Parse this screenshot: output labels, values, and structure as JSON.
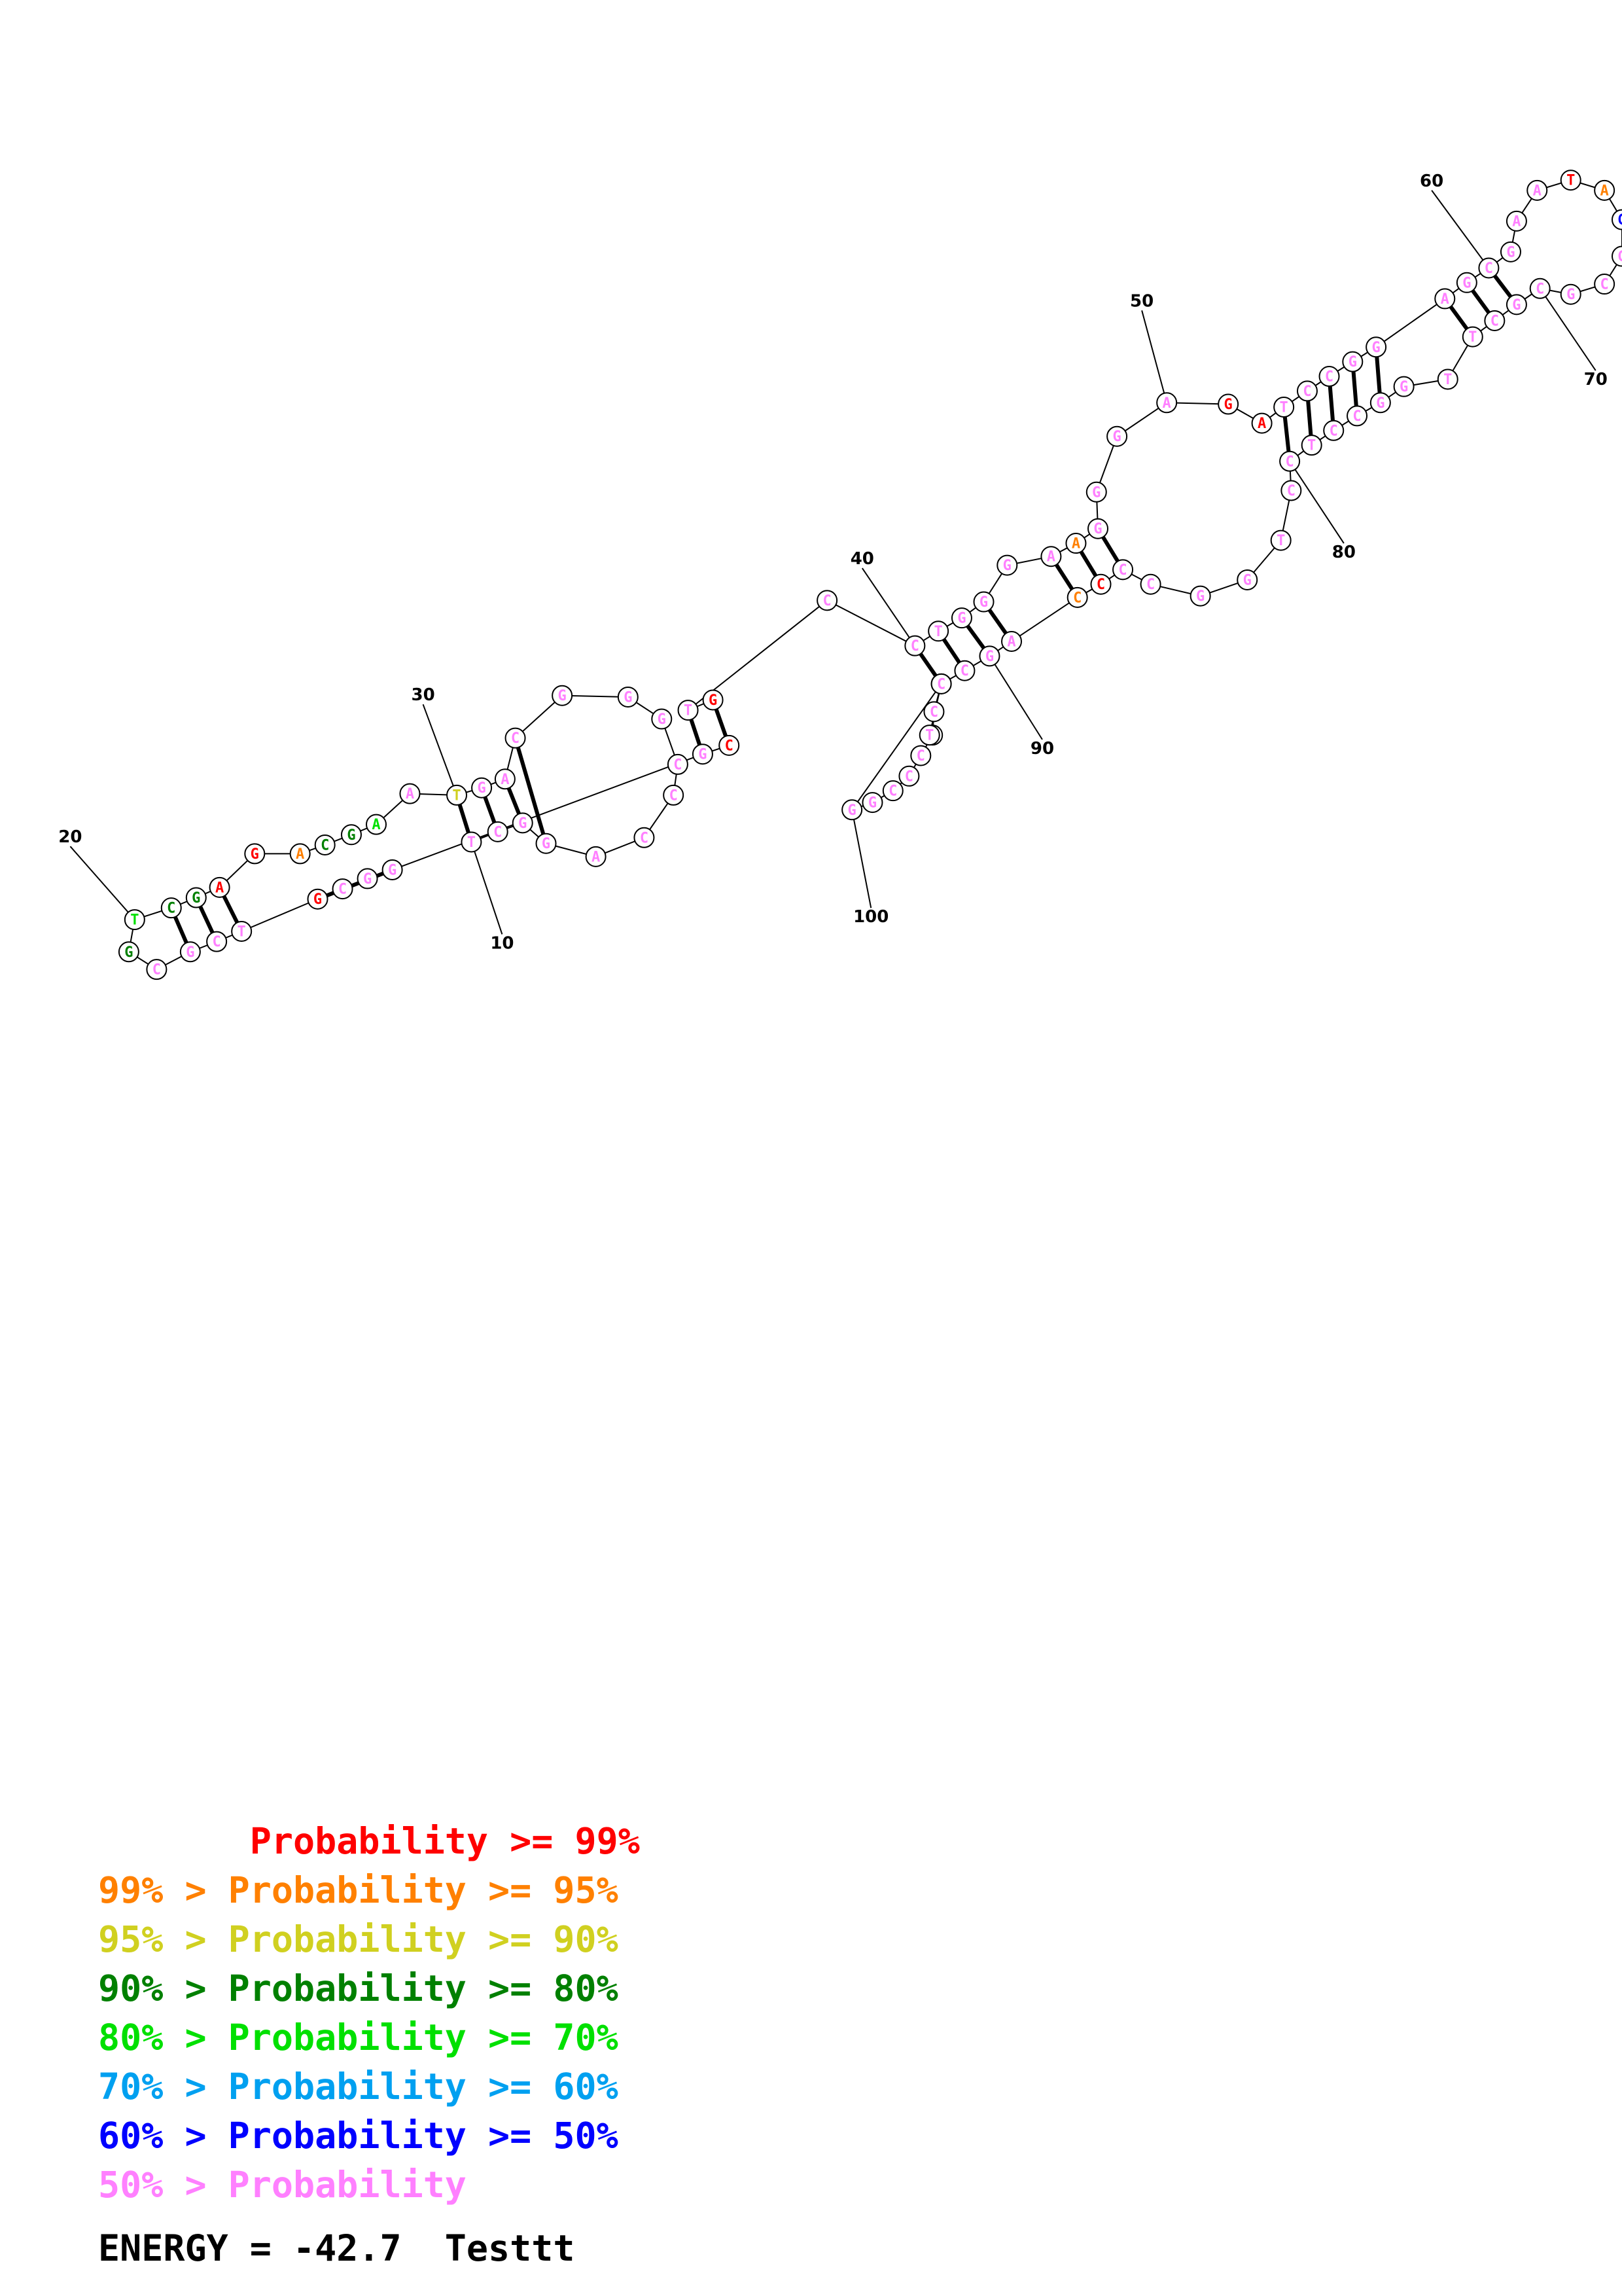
{
  "colors": {
    "p99": "#ff0000",
    "p95": "#ff8000",
    "p90": "#d0d020",
    "p80": "#008000",
    "p70": "#00e000",
    "p60": "#00a0f0",
    "p50": "#0000ff",
    "plow": "#ff80ff"
  },
  "position_labels": [
    "10",
    "20",
    "30",
    "40",
    "50",
    "60",
    "70",
    "80",
    "90",
    "100"
  ],
  "nucleotides": [
    {
      "b": "T",
      "c": "plow"
    },
    {
      "b": "C",
      "c": "plow"
    },
    {
      "b": "G",
      "c": "plow"
    },
    {
      "b": "G",
      "c": "plow"
    },
    {
      "b": "A",
      "c": "plow"
    },
    {
      "b": "C",
      "c": "plow"
    },
    {
      "b": "C",
      "c": "plow"
    },
    {
      "b": "C",
      "c": "plow"
    },
    {
      "b": "G",
      "c": "plow"
    },
    {
      "b": "G",
      "c": "plow"
    },
    {
      "b": "G",
      "c": "plow"
    },
    {
      "b": "C",
      "c": "plow"
    },
    {
      "b": "A",
      "c": "plow"
    },
    {
      "b": "G",
      "c": "plow"
    },
    {
      "b": "T",
      "c": "p90"
    },
    {
      "b": "A",
      "c": "plow"
    },
    {
      "b": "A",
      "c": "p70"
    },
    {
      "b": "G",
      "c": "p80"
    },
    {
      "b": "C",
      "c": "p80"
    },
    {
      "b": "A",
      "c": "p95"
    },
    {
      "b": "G",
      "c": "p99"
    },
    {
      "b": "A",
      "c": "p99"
    },
    {
      "b": "G",
      "c": "p80"
    },
    {
      "b": "C",
      "c": "p80"
    },
    {
      "b": "T",
      "c": "p70"
    },
    {
      "b": "G",
      "c": "p80"
    },
    {
      "b": "C",
      "c": "plow"
    },
    {
      "b": "G",
      "c": "plow"
    },
    {
      "b": "C",
      "c": "plow"
    },
    {
      "b": "T",
      "c": "plow"
    },
    {
      "b": "G",
      "c": "p99"
    },
    {
      "b": "C",
      "c": "plow"
    },
    {
      "b": "G",
      "c": "plow"
    },
    {
      "b": "G",
      "c": "plow"
    },
    {
      "b": "G",
      "c": "plow"
    },
    {
      "b": "C",
      "c": "p99"
    },
    {
      "b": "G",
      "c": "p99"
    },
    {
      "b": "T",
      "c": "plow"
    },
    {
      "b": "C",
      "c": "plow"
    },
    {
      "b": "C",
      "c": "plow"
    },
    {
      "b": "T",
      "c": "plow"
    },
    {
      "b": "G",
      "c": "plow"
    },
    {
      "b": "G",
      "c": "plow"
    },
    {
      "b": "G",
      "c": "plow"
    },
    {
      "b": "A",
      "c": "plow"
    },
    {
      "b": "A",
      "c": "p95"
    },
    {
      "b": "G",
      "c": "plow"
    },
    {
      "b": "G",
      "c": "plow"
    },
    {
      "b": "G",
      "c": "plow"
    },
    {
      "b": "A",
      "c": "plow"
    },
    {
      "b": "G",
      "c": "p99"
    },
    {
      "b": "A",
      "c": "p99"
    },
    {
      "b": "T",
      "c": "plow"
    },
    {
      "b": "C",
      "c": "plow"
    },
    {
      "b": "C",
      "c": "plow"
    },
    {
      "b": "G",
      "c": "plow"
    },
    {
      "b": "G",
      "c": "plow"
    },
    {
      "b": "A",
      "c": "plow"
    },
    {
      "b": "G",
      "c": "plow"
    },
    {
      "b": "C",
      "c": "plow"
    },
    {
      "b": "G",
      "c": "plow"
    },
    {
      "b": "A",
      "c": "plow"
    },
    {
      "b": "A",
      "c": "plow"
    },
    {
      "b": "T",
      "c": "p99"
    },
    {
      "b": "A",
      "c": "p95"
    },
    {
      "b": "G",
      "c": "p50"
    },
    {
      "b": "G",
      "c": "plow"
    },
    {
      "b": "C",
      "c": "plow"
    },
    {
      "b": "G",
      "c": "plow"
    },
    {
      "b": "C",
      "c": "plow"
    },
    {
      "b": "G",
      "c": "plow"
    },
    {
      "b": "C",
      "c": "plow"
    },
    {
      "b": "T",
      "c": "plow"
    },
    {
      "b": "T",
      "c": "plow"
    },
    {
      "b": "G",
      "c": "plow"
    },
    {
      "b": "G",
      "c": "plow"
    },
    {
      "b": "C",
      "c": "plow"
    },
    {
      "b": "C",
      "c": "plow"
    },
    {
      "b": "T",
      "c": "plow"
    },
    {
      "b": "C",
      "c": "plow"
    },
    {
      "b": "C",
      "c": "plow"
    },
    {
      "b": "T",
      "c": "plow"
    },
    {
      "b": "G",
      "c": "plow"
    },
    {
      "b": "G",
      "c": "plow"
    },
    {
      "b": "C",
      "c": "plow"
    },
    {
      "b": "C",
      "c": "plow"
    },
    {
      "b": "C",
      "c": "p99"
    },
    {
      "b": "C",
      "c": "p95"
    },
    {
      "b": "A",
      "c": "plow"
    },
    {
      "b": "G",
      "c": "plow"
    },
    {
      "b": "C",
      "c": "plow"
    },
    {
      "b": "C",
      "c": "plow"
    },
    {
      "b": "C",
      "c": "plow"
    },
    {
      "b": "T",
      "c": "plow"
    },
    {
      "b": "C",
      "c": "plow"
    },
    {
      "b": "C",
      "c": "plow"
    },
    {
      "b": "C",
      "c": "plow"
    },
    {
      "b": "G",
      "c": "plow"
    },
    {
      "b": "G",
      "c": "plow"
    },
    {
      "b": "C",
      "c": "plow"
    },
    {
      "b": "T",
      "c": "plow"
    },
    {
      "b": "T",
      "c": "p90"
    },
    {
      "b": "A",
      "c": "p90"
    },
    {
      "b": "T",
      "c": "plow"
    },
    {
      "b": "C",
      "c": "plow"
    },
    {
      "b": "C",
      "c": "plow"
    }
  ],
  "legend": [
    {
      "text": "       Probability >= 99%",
      "color": "p99"
    },
    {
      "text": "99% > Probability >= 95%",
      "color": "p95"
    },
    {
      "text": "95% > Probability >= 90%",
      "color": "p90"
    },
    {
      "text": "90% > Probability >= 80%",
      "color": "p80"
    },
    {
      "text": "80% > Probability >= 70%",
      "color": "p70"
    },
    {
      "text": "70% > Probability >= 60%",
      "color": "p60"
    },
    {
      "text": "60% > Probability >= 50%",
      "color": "p50"
    },
    {
      "text": "50% > Probability",
      "color": "plow"
    }
  ],
  "energy_label": "ENERGY = -42.7  Testtt"
}
